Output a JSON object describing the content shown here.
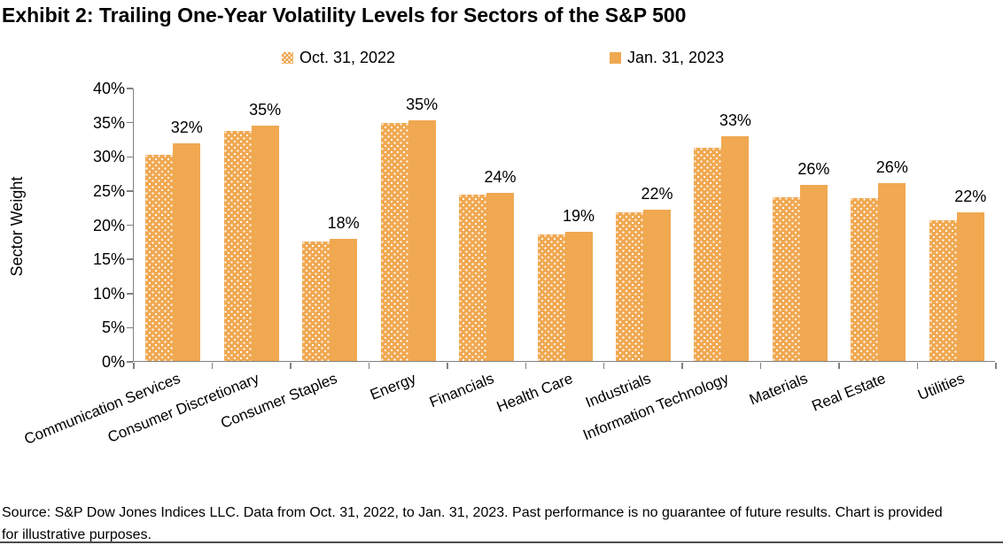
{
  "title": "Exhibit 2: Trailing One-Year Volatility Levels for Sectors of the S&P 500",
  "source_note": "Source: S&P Dow Jones Indices LLC. Data from Oct. 31, 2022, to Jan. 31, 2023. Past performance is no guarantee of future results. Chart is provided for illustrative purposes.",
  "colors": {
    "bar_orange": "#F0A851",
    "axis_gray": "#808080",
    "text_black": "#000000"
  },
  "chart_data": {
    "type": "bar",
    "title": "Exhibit 2: Trailing One-Year Volatility Levels for Sectors of the S&P 500",
    "xlabel": "",
    "ylabel": "Sector Weight",
    "ylim": [
      0,
      40
    ],
    "ytick_step": 5,
    "ytick_suffix": "%",
    "grid": false,
    "legend_position": "top",
    "categories": [
      "Communication Services",
      "Consumer Discretionary",
      "Consumer Staples",
      "Energy",
      "Financials",
      "Health Care",
      "Industrials",
      "Information Technology",
      "Materials",
      "Real Estate",
      "Utilities"
    ],
    "series": [
      {
        "name": "Oct. 31, 2022",
        "style": "dotted",
        "color": "#F0A851",
        "values": [
          30.2,
          33.7,
          17.5,
          34.8,
          24.4,
          18.5,
          21.7,
          31.2,
          24.0,
          23.8,
          20.6
        ]
      },
      {
        "name": "Jan. 31, 2023",
        "style": "solid",
        "color": "#F0A851",
        "values": [
          31.9,
          34.5,
          17.9,
          35.2,
          24.6,
          18.9,
          22.2,
          32.9,
          25.8,
          26.0,
          21.8
        ]
      }
    ],
    "data_labels": [
      "32%",
      "35%",
      "18%",
      "35%",
      "24%",
      "19%",
      "22%",
      "33%",
      "26%",
      "26%",
      "22%"
    ],
    "data_labels_series": "Jan. 31, 2023"
  }
}
